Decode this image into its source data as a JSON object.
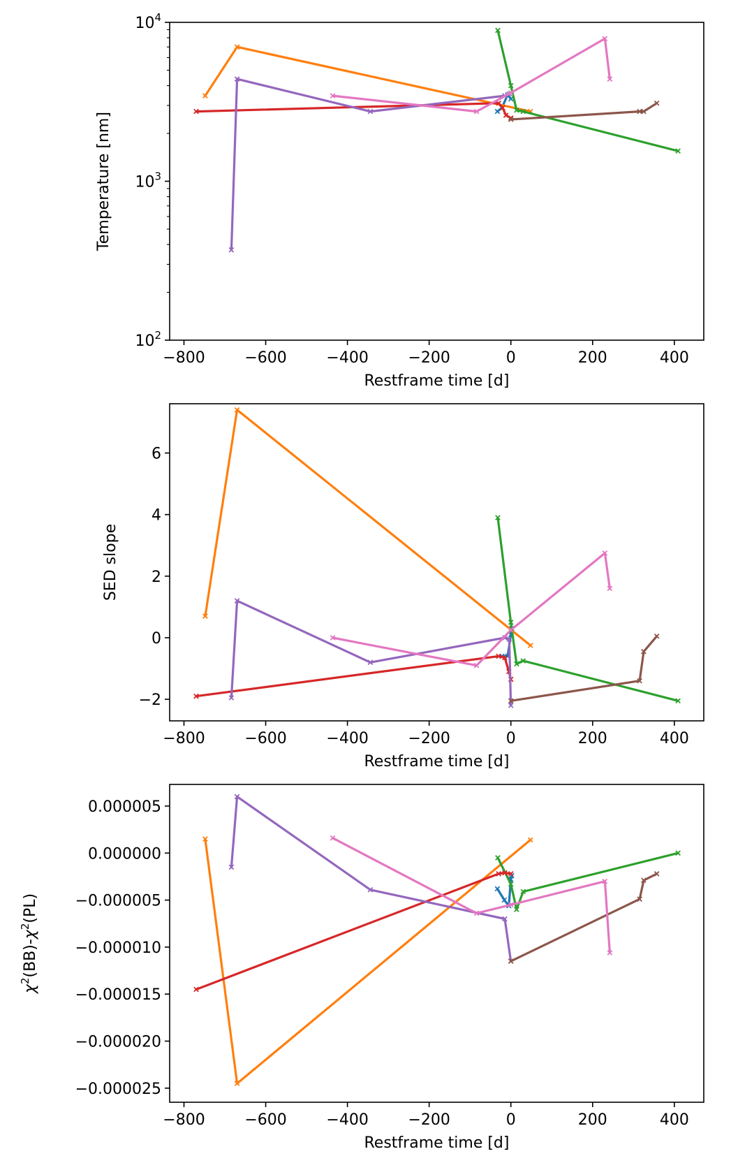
{
  "chart_data": [
    {
      "type": "line",
      "xlabel": "Restframe time [d]",
      "ylabel": "Temperature [nm]",
      "yscale": "log",
      "xlim": [
        -835,
        472
      ],
      "ylim": [
        100,
        10000
      ],
      "xticks": [
        -800,
        -600,
        -400,
        -200,
        0,
        200,
        400
      ],
      "xtick_labels": [
        "−800",
        "−600",
        "−400",
        "−200",
        "0",
        "200",
        "400"
      ],
      "yticks": [
        100,
        1000,
        10000
      ],
      "ytick_labels": [
        {
          "base": "10",
          "exp": "2"
        },
        {
          "base": "10",
          "exp": "3"
        },
        {
          "base": "10",
          "exp": "4"
        }
      ],
      "grid": false,
      "series": [
        {
          "color": "#1f77b4",
          "x": [
            -33,
            -22,
            -8,
            0
          ],
          "y": [
            2750,
            2900,
            3500,
            3300
          ]
        },
        {
          "color": "#ff7f0e",
          "x": [
            -748,
            -670,
            48
          ],
          "y": [
            3450,
            7000,
            2750
          ]
        },
        {
          "color": "#2ca02c",
          "x": [
            -32,
            0,
            14,
            30,
            409
          ],
          "y": [
            8900,
            4000,
            2800,
            2750,
            1550
          ]
        },
        {
          "color": "#d62728",
          "x": [
            -770,
            -30,
            -20,
            -12,
            0
          ],
          "y": [
            2750,
            3100,
            2900,
            2600,
            2500
          ]
        },
        {
          "color": "#9467bd",
          "x": [
            -684,
            -670,
            -344,
            -15,
            -4
          ],
          "y": [
            370,
            4400,
            2750,
            3450,
            3550
          ]
        },
        {
          "color": "#8c564b",
          "x": [
            0,
            315,
            325,
            357
          ],
          "y": [
            2450,
            2750,
            2750,
            3100
          ]
        },
        {
          "color": "#e377c2",
          "x": [
            -436,
            -84,
            0,
            230,
            242
          ],
          "y": [
            3450,
            2750,
            3600,
            7900,
            4400
          ]
        }
      ]
    },
    {
      "type": "line",
      "xlabel": "Restframe time [d]",
      "ylabel": "SED slope",
      "xlim": [
        -835,
        472
      ],
      "ylim": [
        -2.7,
        7.6
      ],
      "xticks": [
        -800,
        -600,
        -400,
        -200,
        0,
        200,
        400
      ],
      "xtick_labels": [
        "−800",
        "−600",
        "−400",
        "−200",
        "0",
        "200",
        "400"
      ],
      "yticks": [
        -2,
        0,
        2,
        4,
        6
      ],
      "ytick_labels": [
        "−2",
        "0",
        "2",
        "4",
        "6"
      ],
      "grid": false,
      "series": [
        {
          "color": "#1f77b4",
          "x": [
            -22,
            -8,
            0,
            2
          ],
          "y": [
            -0.6,
            -0.6,
            0.1,
            0.3
          ]
        },
        {
          "color": "#ff7f0e",
          "x": [
            -748,
            -670,
            48
          ],
          "y": [
            0.7,
            7.4,
            -0.25
          ]
        },
        {
          "color": "#2ca02c",
          "x": [
            -32,
            0,
            14,
            30,
            409
          ],
          "y": [
            3.9,
            0.5,
            -0.85,
            -0.75,
            -2.05
          ]
        },
        {
          "color": "#d62728",
          "x": [
            -770,
            -30,
            -15,
            -5,
            0
          ],
          "y": [
            -1.9,
            -0.6,
            -0.65,
            -1.1,
            -1.35
          ]
        },
        {
          "color": "#9467bd",
          "x": [
            -684,
            -670,
            -344,
            -15,
            -4,
            0
          ],
          "y": [
            -1.95,
            1.2,
            -0.8,
            0.0,
            -0.05,
            -2.2
          ]
        },
        {
          "color": "#8c564b",
          "x": [
            0,
            315,
            325,
            357
          ],
          "y": [
            -2.05,
            -1.4,
            -0.45,
            0.05
          ]
        },
        {
          "color": "#e377c2",
          "x": [
            -436,
            -84,
            0,
            230,
            242
          ],
          "y": [
            0.0,
            -0.9,
            0.25,
            2.75,
            1.6
          ]
        }
      ]
    },
    {
      "type": "line",
      "xlabel": "Restframe time [d]",
      "ylabel_parts": [
        "χ",
        "2",
        "(BB)-",
        "χ",
        "2",
        "(PL)"
      ],
      "xlim": [
        -835,
        472
      ],
      "ylim": [
        -2.65e-05,
        7.3e-06
      ],
      "xticks": [
        -800,
        -600,
        -400,
        -200,
        0,
        200,
        400
      ],
      "xtick_labels": [
        "−800",
        "−600",
        "−400",
        "−200",
        "0",
        "200",
        "400"
      ],
      "yticks": [
        -2.5e-05,
        -2e-05,
        -1.5e-05,
        -1e-05,
        -5e-06,
        0,
        5e-06
      ],
      "ytick_labels": [
        "−0.000025",
        "−0.000020",
        "−0.000015",
        "−0.000010",
        "−0.000005",
        "0.000000",
        "0.000005"
      ],
      "grid": false,
      "series": [
        {
          "color": "#1f77b4",
          "x": [
            -33,
            -16,
            -5,
            0,
            2
          ],
          "y": [
            -3.8e-06,
            -5e-06,
            -5.6e-06,
            -2.8e-06,
            -2.4e-06
          ]
        },
        {
          "color": "#ff7f0e",
          "x": [
            -748,
            -670,
            48
          ],
          "y": [
            1.5e-06,
            -2.45e-05,
            1.4e-06
          ]
        },
        {
          "color": "#2ca02c",
          "x": [
            -32,
            0,
            14,
            30,
            409
          ],
          "y": [
            -5e-07,
            -3.3e-06,
            -6e-06,
            -4.1e-06,
            0.0
          ]
        },
        {
          "color": "#d62728",
          "x": [
            -770,
            -30,
            -15,
            0
          ],
          "y": [
            -1.45e-05,
            -2.2e-06,
            -2.1e-06,
            -2.2e-06
          ]
        },
        {
          "color": "#9467bd",
          "x": [
            -684,
            -670,
            -344,
            -15,
            0
          ],
          "y": [
            -1.5e-06,
            6e-06,
            -3.9e-06,
            -7e-06,
            -1.15e-05
          ]
        },
        {
          "color": "#8c564b",
          "x": [
            0,
            315,
            325,
            357
          ],
          "y": [
            -1.15e-05,
            -4.9e-06,
            -2.9e-06,
            -2.2e-06
          ]
        },
        {
          "color": "#e377c2",
          "x": [
            -436,
            -84,
            0,
            230,
            242
          ],
          "y": [
            1.6e-06,
            -6.4e-06,
            -5.5e-06,
            -3e-06,
            -1.06e-05
          ]
        }
      ]
    }
  ]
}
